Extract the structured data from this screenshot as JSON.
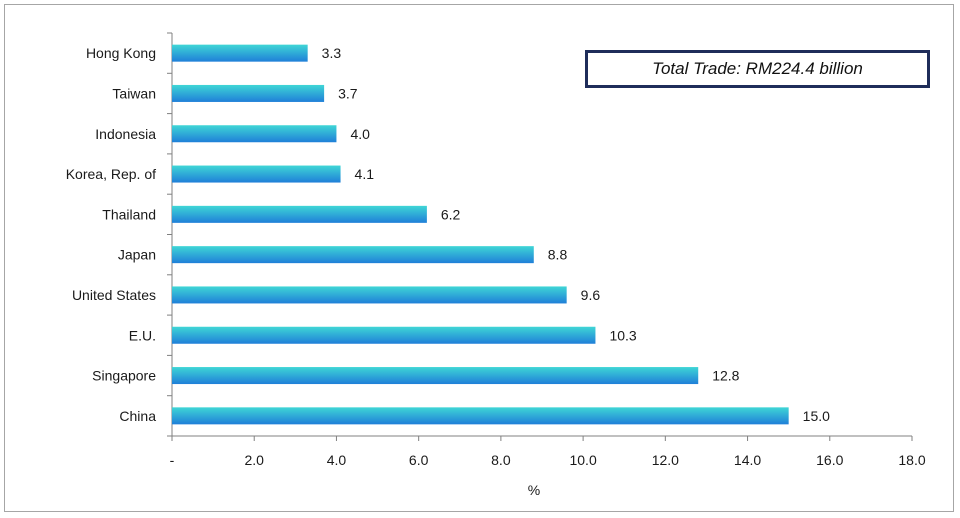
{
  "chart_data": {
    "type": "bar",
    "orientation": "horizontal",
    "categories": [
      "Hong Kong",
      "Taiwan",
      "Indonesia",
      "Korea, Rep. of",
      "Thailand",
      "Japan",
      "United States",
      "E.U.",
      "Singapore",
      "China"
    ],
    "values": [
      3.3,
      3.7,
      4.0,
      4.1,
      6.2,
      8.8,
      9.6,
      10.3,
      12.8,
      15.0
    ],
    "value_labels": [
      "3.3",
      "3.7",
      "4.0",
      "4.1",
      "6.2",
      "8.8",
      "9.6",
      "10.3",
      "12.8",
      "15.0"
    ],
    "xlabel": "%",
    "xlim": [
      0,
      18
    ],
    "x_ticks": [
      0,
      2,
      4,
      6,
      8,
      10,
      12,
      14,
      16,
      18
    ],
    "x_tick_labels": [
      "-",
      "2.0",
      "4.0",
      "6.0",
      "8.0",
      "10.0",
      "12.0",
      "14.0",
      "16.0",
      "18.0"
    ],
    "grid": false,
    "annotation": "Total Trade: RM224.4 billion",
    "colors": {
      "bar_top": "#3fd6d6",
      "bar_bottom": "#1f7fd8",
      "axis": "#808080",
      "box_border": "#1f2d5a"
    }
  }
}
